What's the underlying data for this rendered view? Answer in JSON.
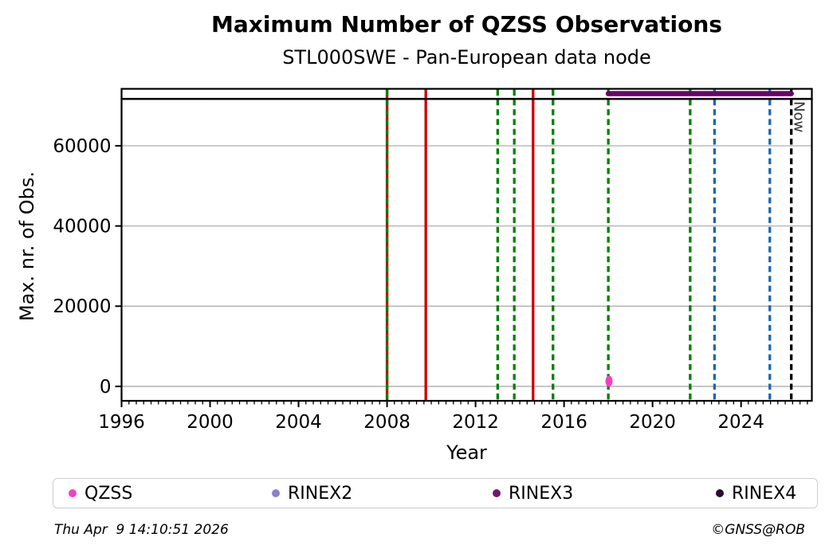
{
  "figure": {
    "title": "Maximum Number of QZSS Observations",
    "subtitle": "STL000SWE - Pan-European data node",
    "footer_left": "Thu Apr  9 14:10:51 2026",
    "footer_right": "©GNSS@ROB"
  },
  "chart_data": {
    "type": "line",
    "title": "Maximum Number of QZSS Observations",
    "subtitle": "STL000SWE - Pan-European data node",
    "xlabel": "Year",
    "ylabel": "Max. nr. of Obs.",
    "xlim": [
      1996,
      2027.2
    ],
    "ylim": [
      -3600,
      74200
    ],
    "xticks": [
      1996,
      2000,
      2004,
      2008,
      2012,
      2016,
      2020,
      2024
    ],
    "yticks": [
      0,
      20000,
      40000,
      60000
    ],
    "x_minor_tick_step": 0.3333,
    "grid": {
      "horizontal": true,
      "vertical": false,
      "color": "#b3b3b3"
    },
    "now_marker": {
      "x": 2026.27,
      "label": "Now",
      "color": "#000000",
      "style": "dashed"
    },
    "series": [
      {
        "name": "max-observations-envelope",
        "type": "hline",
        "color": "#000000",
        "linewidth": 2.5,
        "value": 71700,
        "x_start": 1996.0,
        "x_end": 2027.2
      },
      {
        "name": "RINEX3-availability",
        "type": "hline",
        "color": "#6B006B",
        "linewidth": 6.5,
        "value": 73000,
        "x_start": 2018.0,
        "x_end": 2026.27
      }
    ],
    "points": [
      {
        "name": "QZSS-max-obs",
        "x": 2018.03,
        "y": 1300,
        "color": "#F43FC4",
        "marker": "circle"
      }
    ],
    "event_lines": [
      {
        "x": 2008.0,
        "color": "#CC0000",
        "style": "solid"
      },
      {
        "x": 2008.0,
        "color": "#008000",
        "style": "dashed"
      },
      {
        "x": 2009.75,
        "color": "#CC0000",
        "style": "solid"
      },
      {
        "x": 2013.0,
        "color": "#008000",
        "style": "dashed"
      },
      {
        "x": 2013.75,
        "color": "#008000",
        "style": "dashed"
      },
      {
        "x": 2014.6,
        "color": "#CC0000",
        "style": "solid"
      },
      {
        "x": 2015.5,
        "color": "#008000",
        "style": "dashed"
      },
      {
        "x": 2018.0,
        "color": "#008000",
        "style": "dashed"
      },
      {
        "x": 2021.7,
        "color": "#008000",
        "style": "dashed"
      },
      {
        "x": 2022.8,
        "color": "#1668B4",
        "style": "dashed"
      },
      {
        "x": 2025.3,
        "color": "#1668B4",
        "style": "dashed"
      },
      {
        "x": 2026.27,
        "color": "#000000",
        "style": "dashed",
        "label": "Now"
      }
    ]
  },
  "legend": {
    "items": [
      {
        "label": "QZSS",
        "color": "#F43FC4"
      },
      {
        "label": "RINEX2",
        "color": "#8A7FD0"
      },
      {
        "label": "RINEX3",
        "color": "#701672"
      },
      {
        "label": "RINEX4",
        "color": "#2A0A33"
      }
    ]
  }
}
